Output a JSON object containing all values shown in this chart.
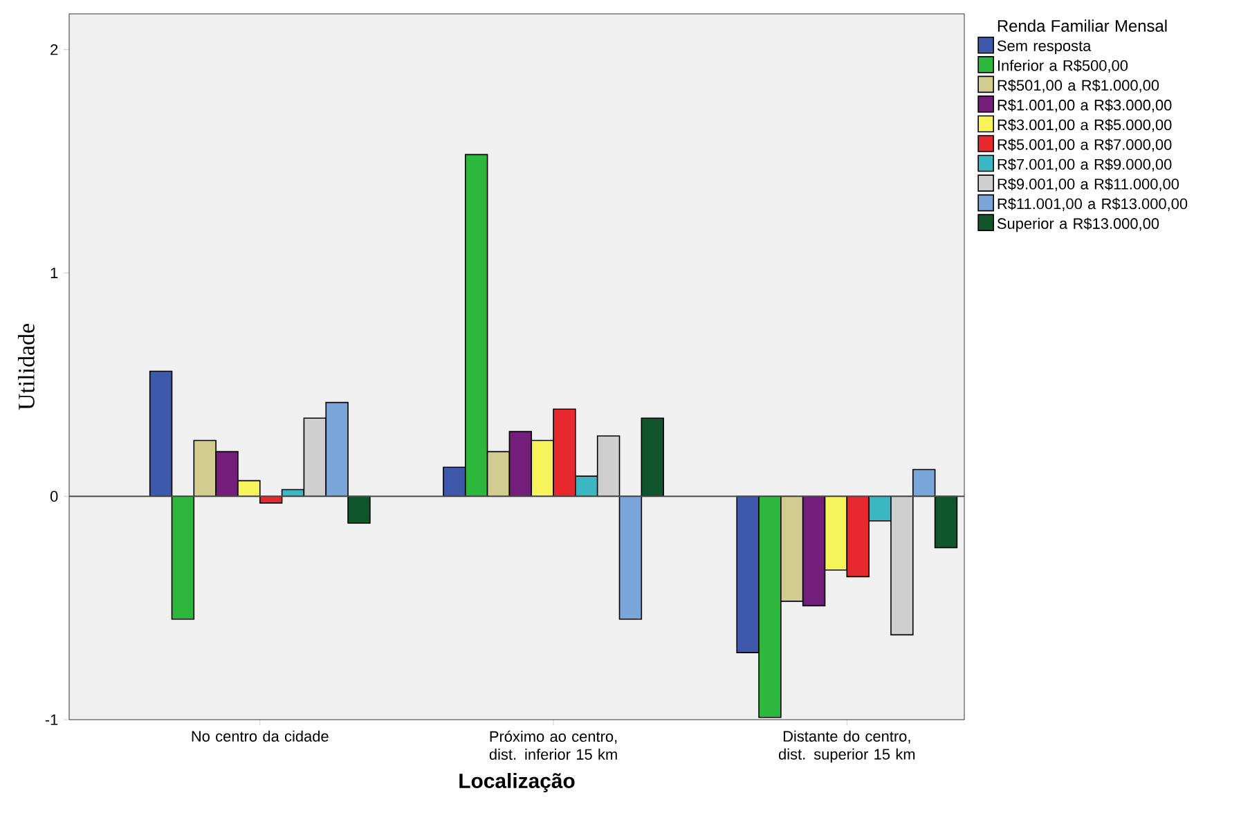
{
  "chart_data": {
    "type": "bar",
    "xlabel": "Localização",
    "ylabel": "Utilidade",
    "legend_title": "Renda Familiar Mensal",
    "legend": "right",
    "categories": [
      "No centro da cidade",
      "Próximo ao centro, dist. inferior 15 km",
      "Distante do centro, dist. superior 15 km"
    ],
    "ylim": [
      -1,
      2.16
    ],
    "yticks": [
      -1,
      0,
      1,
      2
    ],
    "ref_lines": [
      {
        "axis": "y",
        "value": 0,
        "color": "#4d4d4d"
      }
    ],
    "series": [
      {
        "name": "Sem resposta",
        "color": "#3e58ac",
        "values": [
          0.56,
          0.13,
          -0.7
        ]
      },
      {
        "name": "Inferior a R$500,00",
        "color": "#2db83d",
        "values": [
          -0.55,
          1.53,
          -0.99
        ]
      },
      {
        "name": "R$501,00 a R$1.000,00",
        "color": "#d2cc91",
        "values": [
          0.25,
          0.2,
          -0.47
        ]
      },
      {
        "name": "R$1.001,00 a R$3.000,00",
        "color": "#741e7c",
        "values": [
          0.2,
          0.29,
          -0.49
        ]
      },
      {
        "name": "R$3.001,00 a R$5.000,00",
        "color": "#f7f35a",
        "values": [
          0.07,
          0.25,
          -0.33
        ]
      },
      {
        "name": "R$5.001,00 a R$7.000,00",
        "color": "#e8282f",
        "values": [
          -0.03,
          0.39,
          -0.36
        ]
      },
      {
        "name": "R$7.001,00 a R$9.000,00",
        "color": "#3ab7c2",
        "values": [
          0.03,
          0.09,
          -0.11
        ]
      },
      {
        "name": "R$9.001,00 a R$11.000,00",
        "color": "#cfcfcf",
        "values": [
          0.35,
          0.27,
          -0.62
        ]
      },
      {
        "name": "R$11.001,00 a R$13.000,00",
        "color": "#79a5d8",
        "values": [
          0.42,
          -0.55,
          0.12
        ]
      },
      {
        "name": "Superior a R$13.000,00",
        "color": "#10552b",
        "values": [
          -0.12,
          0.35,
          -0.23
        ]
      }
    ]
  }
}
